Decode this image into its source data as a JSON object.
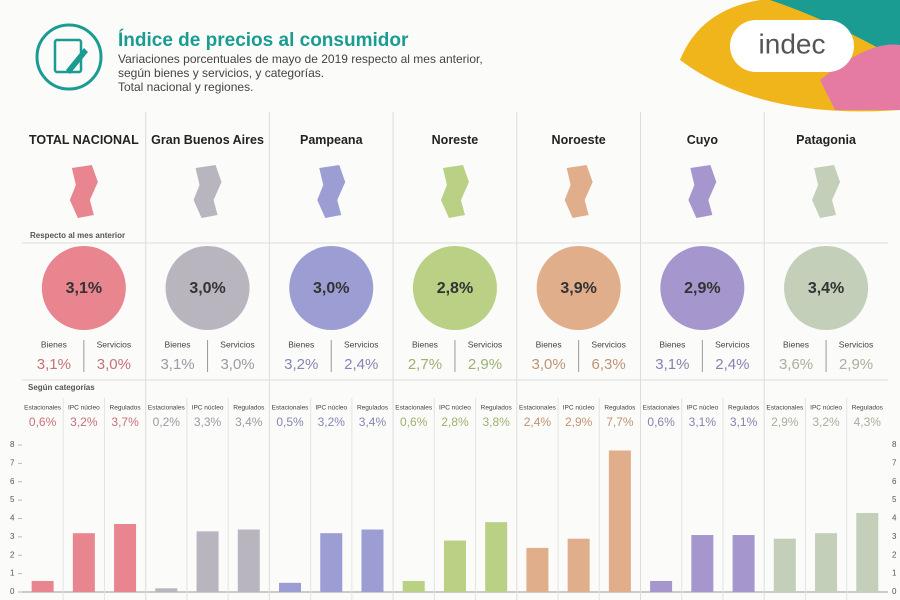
{
  "header": {
    "title": "Índice de precios al consumidor",
    "subtitle_lines": [
      "Variaciones porcentuales de mayo de 2019 respecto al mes anterior,",
      "según bienes y servicios, y categorías.",
      "Total nacional y regiones."
    ],
    "logo": "indec"
  },
  "section_labels": {
    "monthly": "Respecto al mes anterior",
    "categories": "Según categorías",
    "goods": "Bienes",
    "services": "Servicios"
  },
  "regions": [
    {
      "total": "3,1%",
      "goods": "3,1%",
      "services": "3,0%"
    },
    {
      "total": "3,0%",
      "goods": "3,1%",
      "services": "3,0%"
    },
    {
      "total": "3,0%",
      "goods": "3,2%",
      "services": "2,4%"
    },
    {
      "total": "2,8%",
      "goods": "2,7%",
      "services": "2,9%"
    },
    {
      "total": "3,9%",
      "goods": "3,0%",
      "services": "6,3%"
    },
    {
      "total": "2,9%",
      "goods": "3,1%",
      "services": "2,4%"
    },
    {
      "total": "3,4%",
      "goods": "3,6%",
      "services": "2,9%"
    }
  ],
  "chart_data": {
    "type": "bar",
    "categories": [
      "TOTAL NACIONAL",
      "Gran Buenos Aires",
      "Pampeana",
      "Noreste",
      "Noroeste",
      "Cuyo",
      "Patagonia"
    ],
    "category_colors": [
      "#e8858f",
      "#b9b5bf",
      "#9c9ed3",
      "#b9d085",
      "#e0ae8a",
      "#a596cd",
      "#c3cfb9"
    ],
    "series": [
      {
        "name": "Estacionales",
        "values": [
          0.6,
          0.2,
          0.5,
          0.6,
          2.4,
          0.6,
          2.9
        ],
        "value_labels": [
          "0,6%",
          "0,2%",
          "0,5%",
          "0,6%",
          "2,4%",
          "0,6%",
          "2,9%"
        ]
      },
      {
        "name": "IPC núcleo",
        "values": [
          3.2,
          3.3,
          3.2,
          2.8,
          2.9,
          3.1,
          3.2
        ],
        "value_labels": [
          "3,2%",
          "3,3%",
          "3,2%",
          "2,8%",
          "2,9%",
          "3,1%",
          "3,2%"
        ]
      },
      {
        "name": "Regulados",
        "values": [
          3.7,
          3.4,
          3.4,
          3.8,
          7.7,
          3.1,
          4.3
        ],
        "value_labels": [
          "3,7%",
          "3,4%",
          "3,4%",
          "3,8%",
          "7,7%",
          "3,1%",
          "4,3%"
        ]
      }
    ],
    "ylim": [
      0,
      8
    ],
    "yticks": [
      0,
      1,
      2,
      3,
      4,
      5,
      6,
      7,
      8
    ]
  }
}
